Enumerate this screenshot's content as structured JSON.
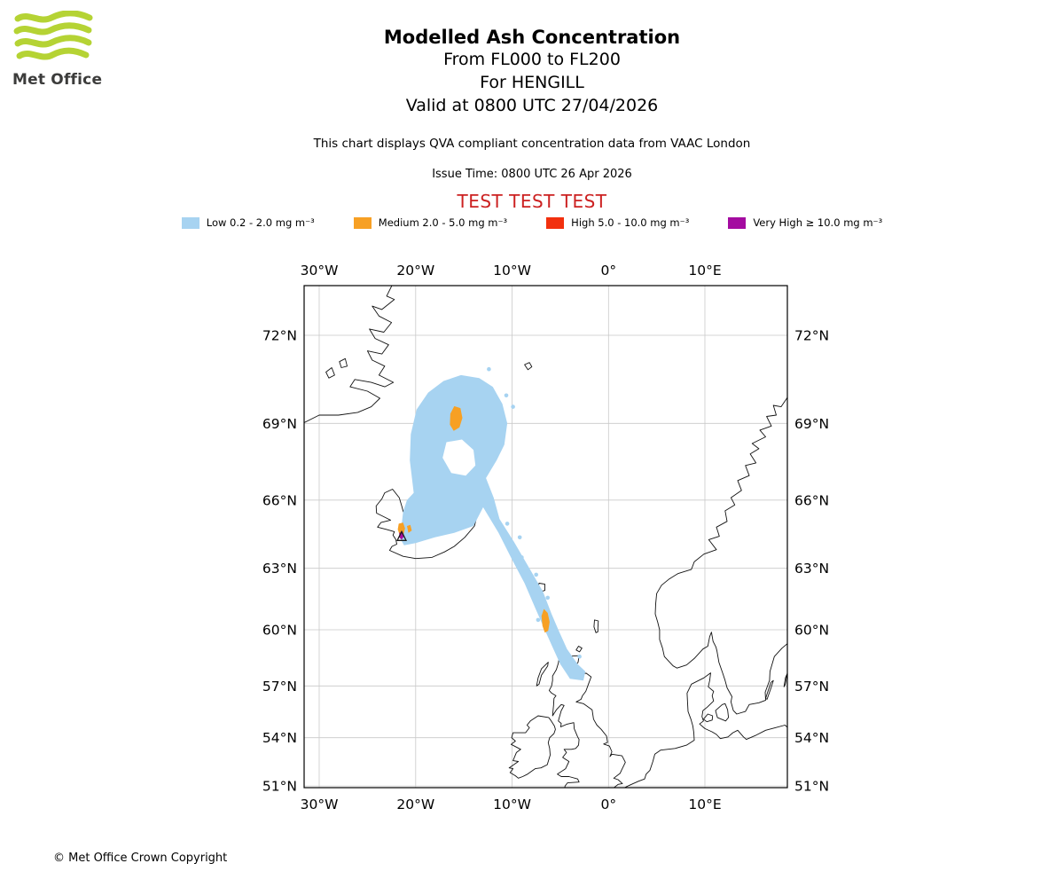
{
  "header": {
    "logo_text": "Met Office",
    "title": "Modelled Ash Concentration",
    "flight_levels": "From FL000 to FL200",
    "volcano_line": "For HENGILL",
    "valid_line": "Valid at 0800 UTC 27/04/2026",
    "description": "This chart displays QVA compliant concentration data from VAAC London",
    "issue_time": "Issue Time: 0800 UTC 26 Apr 2026",
    "test_banner": "TEST TEST TEST",
    "test_color": "#cc2121"
  },
  "legend": {
    "items": [
      {
        "key": "low",
        "label": "Low 0.2 - 2.0 mg m⁻³",
        "color": "#a7d3f1"
      },
      {
        "key": "medium",
        "label": "Medium 2.0 - 5.0 mg m⁻³",
        "color": "#f7a024"
      },
      {
        "key": "high",
        "label": "High 5.0 - 10.0 mg m⁻³",
        "color": "#f2300e"
      },
      {
        "key": "very_high",
        "label": "Very High ≥ 10.0 mg m⁻³",
        "color": "#a40ba0"
      }
    ]
  },
  "map": {
    "lon_ticks": [
      {
        "lon": -30,
        "label": "30°W"
      },
      {
        "lon": -20,
        "label": "20°W"
      },
      {
        "lon": -10,
        "label": "10°W"
      },
      {
        "lon": 0,
        "label": "0°"
      },
      {
        "lon": 10,
        "label": "10°E"
      }
    ],
    "lat_ticks": [
      {
        "lat": 72,
        "label": "72°N"
      },
      {
        "lat": 69,
        "label": "69°N"
      },
      {
        "lat": 66,
        "label": "66°N"
      },
      {
        "lat": 63,
        "label": "63°N"
      },
      {
        "lat": 60,
        "label": "60°N"
      },
      {
        "lat": 57,
        "label": "57°N"
      },
      {
        "lat": 54,
        "label": "54°N"
      },
      {
        "lat": 51,
        "label": "51°N"
      }
    ]
  },
  "chart_data": {
    "type": "map-contour",
    "units": "mg m⁻³",
    "source_volcano": {
      "name": "HENGILL",
      "lat": 64.42,
      "lon": -21.45
    },
    "layers": [
      {
        "key": "low",
        "color": "#a7d3f1",
        "rings": [
          [
            [
              66.3,
              -20.2
            ],
            [
              67.6,
              -20.6
            ],
            [
              68.6,
              -20.5
            ],
            [
              69.5,
              -19.9
            ],
            [
              70.1,
              -18.7
            ],
            [
              70.5,
              -17.1
            ],
            [
              70.7,
              -15.3
            ],
            [
              70.6,
              -13.4
            ],
            [
              70.3,
              -12.0
            ],
            [
              69.7,
              -11.0
            ],
            [
              69.0,
              -10.5
            ],
            [
              68.2,
              -10.8
            ],
            [
              67.6,
              -11.6
            ],
            [
              66.9,
              -12.7
            ],
            [
              66.1,
              -11.9
            ],
            [
              65.2,
              -11.3
            ],
            [
              64.2,
              -9.8
            ],
            [
              63.0,
              -8.2
            ],
            [
              61.9,
              -6.8
            ],
            [
              60.8,
              -5.9
            ],
            [
              60.0,
              -5.2
            ],
            [
              59.0,
              -4.3
            ],
            [
              58.2,
              -3.2
            ],
            [
              57.8,
              -2.4
            ],
            [
              57.3,
              -2.6
            ],
            [
              57.4,
              -4.0
            ],
            [
              58.2,
              -5.0
            ],
            [
              59.1,
              -5.8
            ],
            [
              60.1,
              -6.7
            ],
            [
              61.1,
              -7.6
            ],
            [
              62.3,
              -8.7
            ],
            [
              63.4,
              -10.0
            ],
            [
              64.6,
              -11.4
            ],
            [
              65.7,
              -13.0
            ],
            [
              64.9,
              -14.0
            ],
            [
              64.6,
              -16.0
            ],
            [
              64.4,
              -18.0
            ],
            [
              64.15,
              -20.0
            ],
            [
              64.05,
              -21.2
            ],
            [
              64.35,
              -21.6
            ],
            [
              65.5,
              -21.3
            ],
            [
              66.0,
              -20.9
            ]
          ],
          [
            [
              68.3,
              -16.8
            ],
            [
              68.4,
              -15.2
            ],
            [
              68.0,
              -14.0
            ],
            [
              67.4,
              -13.8
            ],
            [
              67.0,
              -14.8
            ],
            [
              67.1,
              -16.3
            ],
            [
              67.7,
              -17.2
            ]
          ]
        ],
        "specks": [
          [
            70.9,
            -12.4
          ],
          [
            70.0,
            -10.6
          ],
          [
            69.6,
            -9.9
          ],
          [
            65.0,
            -10.5
          ],
          [
            64.4,
            -9.2
          ],
          [
            63.5,
            -9.0
          ],
          [
            62.7,
            -7.5
          ],
          [
            61.6,
            -6.3
          ],
          [
            60.5,
            -7.3
          ],
          [
            59.3,
            -4.9
          ],
          [
            58.6,
            -3.0
          ]
        ]
      },
      {
        "key": "medium",
        "color": "#f7a024",
        "rings": [
          [
            [
              69.62,
              -16.0
            ],
            [
              69.55,
              -15.35
            ],
            [
              69.2,
              -15.15
            ],
            [
              68.85,
              -15.45
            ],
            [
              68.72,
              -16.05
            ],
            [
              68.95,
              -16.45
            ],
            [
              69.35,
              -16.4
            ]
          ],
          [
            [
              61.05,
              -6.7
            ],
            [
              60.85,
              -6.3
            ],
            [
              60.4,
              -6.1
            ],
            [
              59.95,
              -6.25
            ],
            [
              59.85,
              -6.6
            ],
            [
              60.2,
              -6.85
            ],
            [
              60.7,
              -6.95
            ]
          ],
          [
            [
              65.0,
              -21.75
            ],
            [
              65.05,
              -21.3
            ],
            [
              64.8,
              -21.1
            ],
            [
              64.55,
              -21.25
            ],
            [
              64.5,
              -21.65
            ],
            [
              64.75,
              -21.85
            ]
          ],
          [
            [
              64.9,
              -20.9
            ],
            [
              64.95,
              -20.55
            ],
            [
              64.7,
              -20.4
            ],
            [
              64.6,
              -20.75
            ]
          ]
        ],
        "specks": []
      },
      {
        "key": "high",
        "color": "#f2300e",
        "rings": [],
        "specks": []
      },
      {
        "key": "very_high",
        "color": "#a40ba0",
        "rings": [
          [
            [
              64.6,
              -21.7
            ],
            [
              64.65,
              -21.35
            ],
            [
              64.45,
              -21.2
            ],
            [
              64.3,
              -21.45
            ],
            [
              64.4,
              -21.7
            ]
          ]
        ],
        "specks": []
      }
    ]
  },
  "footer": {
    "copyright": "© Met Office Crown Copyright"
  }
}
